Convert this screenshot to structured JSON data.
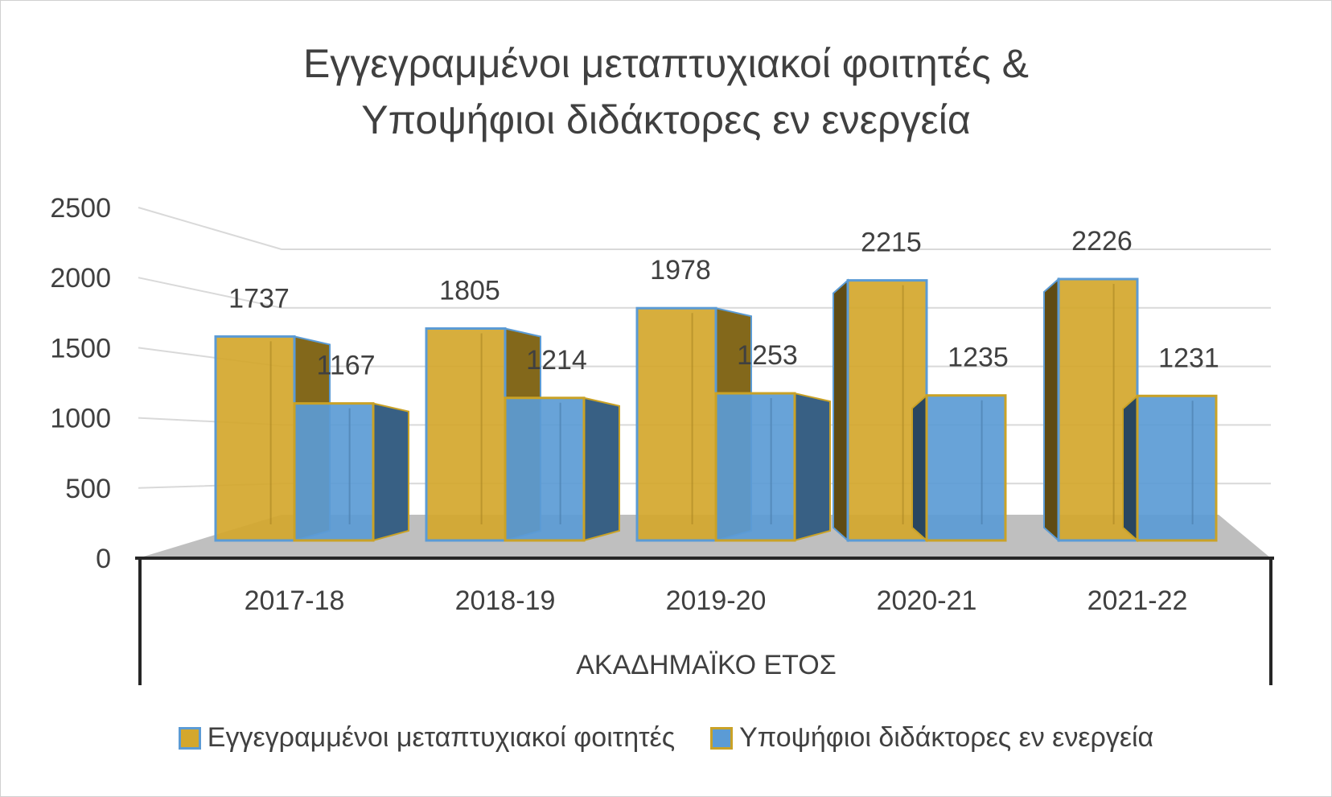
{
  "chart_data": {
    "type": "bar",
    "title_line1": "Εγγεγραμμένοι μεταπτυχιακοί φοιτητές &",
    "title_line2": "Υποψήφιοι διδάκτορες εν ενεργεία",
    "xlabel": "ΑΚΑΔΗΜΑΪΚΟ ΕΤΟΣ",
    "ylabel": "",
    "ylim": [
      0,
      2500
    ],
    "yticks": [
      "0",
      "500",
      "1000",
      "1500",
      "2000",
      "2500"
    ],
    "categories": [
      "2017-18",
      "2018-19",
      "2019-20",
      "2020-21",
      "2021-22"
    ],
    "series": [
      {
        "name": "Εγγεγραμμένοι μεταπτυχιακοί φοιτητές",
        "values": [
          1737,
          1805,
          1978,
          2215,
          2226
        ],
        "color": "#D4A72C",
        "border": "#5B9BD5"
      },
      {
        "name": "Υποψήφιοι διδάκτορες εν ενεργεία",
        "values": [
          1167,
          1214,
          1253,
          1235,
          1231
        ],
        "color": "#5B9BD5",
        "border": "#C9A227"
      }
    ],
    "grid": true,
    "legend_position": "bottom",
    "style": "3d-clustered-column"
  }
}
